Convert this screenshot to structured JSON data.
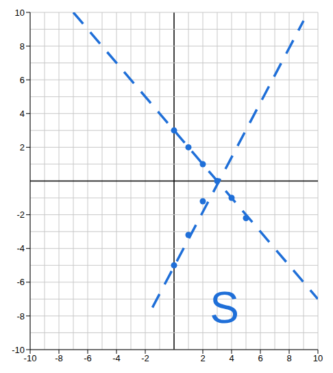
{
  "chart_data": {
    "type": "scatter",
    "xlim": [
      -10,
      10
    ],
    "ylim": [
      -10,
      10
    ],
    "xticks": [
      -10,
      -8,
      -6,
      -4,
      -2,
      2,
      4,
      6,
      8,
      10
    ],
    "yticks": [
      -10,
      -8,
      -6,
      -4,
      -2,
      2,
      4,
      6,
      8,
      10
    ],
    "grid": true,
    "series": [
      {
        "type": "scatter",
        "marker": "circle",
        "color": "#1f6fd8",
        "x": [
          0,
          1,
          2,
          3,
          0,
          1,
          2,
          4,
          5
        ],
        "y": [
          3,
          2,
          1,
          0,
          -5,
          -3.2,
          -1.2,
          -1,
          -2.2
        ]
      },
      {
        "type": "line",
        "line_style": "dashed",
        "color": "#1f6fd8",
        "x": [
          -7,
          10
        ],
        "y": [
          10,
          -7
        ]
      },
      {
        "type": "line",
        "line_style": "dashed",
        "color": "#1f6fd8",
        "x": [
          -1.5,
          9
        ],
        "y": [
          -7.5,
          9.5
        ]
      }
    ],
    "annotations": [
      {
        "text": "S",
        "x": 3.5,
        "y": -7.5,
        "color": "#1f6fd8"
      }
    ]
  }
}
